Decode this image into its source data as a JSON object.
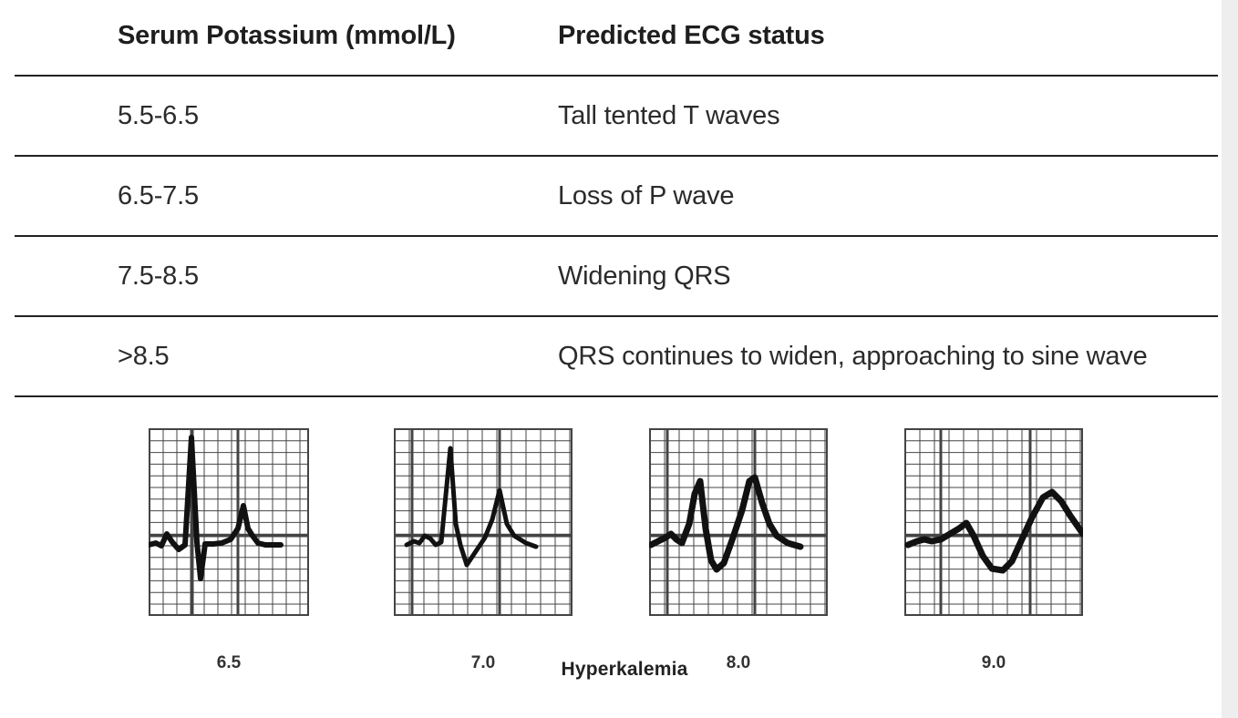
{
  "table": {
    "headers": [
      "Serum Potassium (mmol/L)",
      "Predicted ECG status"
    ],
    "rows": [
      [
        "5.5-6.5",
        "Tall tented T waves"
      ],
      [
        "6.5-7.5",
        "Loss of P wave"
      ],
      [
        "7.5-8.5",
        "Widening QRS"
      ],
      [
        ">8.5",
        "QRS continues to widen, approaching to sine wave"
      ]
    ]
  },
  "figure": {
    "panels": [
      {
        "label": "6.5"
      },
      {
        "label": "7.0"
      },
      {
        "label": "8.0"
      },
      {
        "label": "9.0"
      }
    ],
    "caption": "Hyperkalemia"
  },
  "colors": {
    "rule": "#222222",
    "text": "#2b2b2b",
    "grid": "#444444",
    "trace": "#111111",
    "scrollbar": "#eeeeee"
  }
}
